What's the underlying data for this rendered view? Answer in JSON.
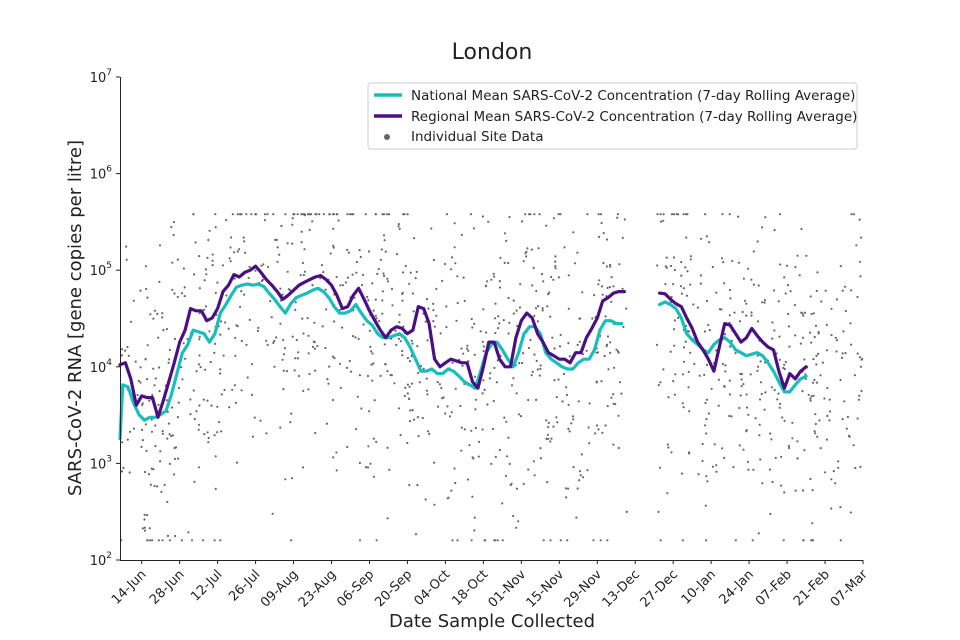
{
  "chart_data": {
    "type": "line",
    "title": "London",
    "xlabel": "Date Sample Collected",
    "ylabel": "SARS-CoV-2 RNA [gene copies per litre]",
    "yscale": "log",
    "ylim": [
      100,
      10000000
    ],
    "xlim": [
      "2021-06-06",
      "2022-03-07"
    ],
    "grid": false,
    "legend_position": "top-right",
    "yticks": [
      {
        "value": 100,
        "base": "10",
        "exp": "2"
      },
      {
        "value": 1000,
        "base": "10",
        "exp": "3"
      },
      {
        "value": 10000,
        "base": "10",
        "exp": "4"
      },
      {
        "value": 100000,
        "base": "10",
        "exp": "5"
      },
      {
        "value": 1000000,
        "base": "10",
        "exp": "6"
      },
      {
        "value": 10000000,
        "base": "10",
        "exp": "7"
      }
    ],
    "xticks": [
      {
        "date": "2021-06-14",
        "label": "14-Jun"
      },
      {
        "date": "2021-06-28",
        "label": "28-Jun"
      },
      {
        "date": "2021-07-12",
        "label": "12-Jul"
      },
      {
        "date": "2021-07-26",
        "label": "26-Jul"
      },
      {
        "date": "2021-08-09",
        "label": "09-Aug"
      },
      {
        "date": "2021-08-23",
        "label": "23-Aug"
      },
      {
        "date": "2021-09-06",
        "label": "06-Sep"
      },
      {
        "date": "2021-09-20",
        "label": "20-Sep"
      },
      {
        "date": "2021-10-04",
        "label": "04-Oct"
      },
      {
        "date": "2021-10-18",
        "label": "18-Oct"
      },
      {
        "date": "2021-11-01",
        "label": "01-Nov"
      },
      {
        "date": "2021-11-15",
        "label": "15-Nov"
      },
      {
        "date": "2021-11-29",
        "label": "29-Nov"
      },
      {
        "date": "2021-12-13",
        "label": "13-Dec"
      },
      {
        "date": "2021-12-27",
        "label": "27-Dec"
      },
      {
        "date": "2022-01-10",
        "label": "10-Jan"
      },
      {
        "date": "2022-01-24",
        "label": "24-Jan"
      },
      {
        "date": "2022-02-07",
        "label": "07-Feb"
      },
      {
        "date": "2022-02-21",
        "label": "21-Feb"
      },
      {
        "date": "2022-03-07",
        "label": "07-Mar"
      }
    ],
    "series": [
      {
        "name": "National Mean SARS-CoV-2 Concentration (7-day Rolling Average)",
        "color": "#17bebb",
        "points": [
          [
            "2021-06-06",
            1800
          ],
          [
            "2021-06-07",
            6500
          ],
          [
            "2021-06-09",
            6200
          ],
          [
            "2021-06-11",
            4200
          ],
          [
            "2021-06-13",
            3200
          ],
          [
            "2021-06-15",
            2800
          ],
          [
            "2021-06-17",
            3000
          ],
          [
            "2021-06-19",
            3000
          ],
          [
            "2021-06-21",
            3200
          ],
          [
            "2021-06-23",
            3500
          ],
          [
            "2021-06-25",
            5200
          ],
          [
            "2021-06-27",
            8500
          ],
          [
            "2021-06-29",
            14000
          ],
          [
            "2021-07-01",
            17000
          ],
          [
            "2021-07-03",
            24000
          ],
          [
            "2021-07-05",
            23000
          ],
          [
            "2021-07-07",
            22000
          ],
          [
            "2021-07-09",
            18000
          ],
          [
            "2021-07-11",
            22000
          ],
          [
            "2021-07-13",
            36000
          ],
          [
            "2021-07-15",
            44000
          ],
          [
            "2021-07-17",
            55000
          ],
          [
            "2021-07-19",
            67000
          ],
          [
            "2021-07-21",
            70000
          ],
          [
            "2021-07-23",
            72000
          ],
          [
            "2021-07-25",
            70000
          ],
          [
            "2021-07-27",
            72000
          ],
          [
            "2021-07-29",
            68000
          ],
          [
            "2021-07-31",
            58000
          ],
          [
            "2021-08-02",
            50000
          ],
          [
            "2021-08-04",
            42000
          ],
          [
            "2021-08-06",
            36000
          ],
          [
            "2021-08-08",
            45000
          ],
          [
            "2021-08-10",
            52000
          ],
          [
            "2021-08-12",
            55000
          ],
          [
            "2021-08-14",
            58000
          ],
          [
            "2021-08-16",
            62000
          ],
          [
            "2021-08-18",
            65000
          ],
          [
            "2021-08-20",
            60000
          ],
          [
            "2021-08-22",
            52000
          ],
          [
            "2021-08-24",
            42000
          ],
          [
            "2021-08-26",
            36000
          ],
          [
            "2021-08-28",
            36000
          ],
          [
            "2021-08-30",
            38000
          ],
          [
            "2021-09-01",
            44000
          ],
          [
            "2021-09-03",
            36000
          ],
          [
            "2021-09-05",
            30000
          ],
          [
            "2021-09-07",
            27000
          ],
          [
            "2021-09-09",
            22000
          ],
          [
            "2021-09-11",
            20000
          ],
          [
            "2021-09-13",
            20000
          ],
          [
            "2021-09-15",
            21000
          ],
          [
            "2021-09-17",
            22000
          ],
          [
            "2021-09-19",
            20000
          ],
          [
            "2021-09-21",
            16000
          ],
          [
            "2021-09-23",
            12000
          ],
          [
            "2021-09-25",
            9000
          ],
          [
            "2021-09-27",
            9000
          ],
          [
            "2021-09-29",
            9500
          ],
          [
            "2021-10-01",
            8500
          ],
          [
            "2021-10-03",
            8500
          ],
          [
            "2021-10-05",
            9500
          ],
          [
            "2021-10-07",
            9000
          ],
          [
            "2021-10-09",
            8000
          ],
          [
            "2021-10-11",
            7000
          ],
          [
            "2021-10-13",
            6500
          ],
          [
            "2021-10-15",
            6000
          ],
          [
            "2021-10-17",
            9000
          ],
          [
            "2021-10-19",
            14000
          ],
          [
            "2021-10-21",
            17000
          ],
          [
            "2021-10-23",
            18000
          ],
          [
            "2021-10-25",
            15000
          ],
          [
            "2021-10-27",
            12000
          ],
          [
            "2021-10-29",
            10000
          ],
          [
            "2021-10-31",
            14000
          ],
          [
            "2021-11-02",
            22000
          ],
          [
            "2021-11-04",
            26000
          ],
          [
            "2021-11-06",
            26000
          ],
          [
            "2021-11-08",
            22000
          ],
          [
            "2021-11-10",
            14000
          ],
          [
            "2021-11-12",
            12000
          ],
          [
            "2021-11-14",
            11000
          ],
          [
            "2021-11-16",
            10000
          ],
          [
            "2021-11-18",
            9500
          ],
          [
            "2021-11-20",
            9500
          ],
          [
            "2021-11-22",
            11000
          ],
          [
            "2021-11-24",
            12000
          ],
          [
            "2021-11-26",
            12000
          ],
          [
            "2021-11-28",
            15000
          ],
          [
            "2021-11-30",
            24000
          ],
          [
            "2021-12-02",
            30000
          ],
          [
            "2021-12-04",
            30000
          ],
          [
            "2021-12-06",
            28000
          ],
          [
            "2021-12-08",
            28000
          ],
          null,
          [
            "2021-12-22",
            44000
          ],
          [
            "2021-12-24",
            47000
          ],
          [
            "2021-12-26",
            44000
          ],
          [
            "2021-12-28",
            40000
          ],
          [
            "2021-12-30",
            32000
          ],
          [
            "2022-01-01",
            22000
          ],
          [
            "2022-01-03",
            19000
          ],
          [
            "2022-01-05",
            17000
          ],
          [
            "2022-01-07",
            15000
          ],
          [
            "2022-01-09",
            14000
          ],
          [
            "2022-01-11",
            17000
          ],
          [
            "2022-01-13",
            19000
          ],
          [
            "2022-01-15",
            20000
          ],
          [
            "2022-01-17",
            18000
          ],
          [
            "2022-01-19",
            15000
          ],
          [
            "2022-01-21",
            14000
          ],
          [
            "2022-01-23",
            13000
          ],
          [
            "2022-01-25",
            13500
          ],
          [
            "2022-01-27",
            14000
          ],
          [
            "2022-01-29",
            13000
          ],
          [
            "2022-01-31",
            11000
          ],
          [
            "2022-02-02",
            9000
          ],
          [
            "2022-02-04",
            7000
          ],
          [
            "2022-02-06",
            5500
          ],
          [
            "2022-02-08",
            5500
          ],
          [
            "2022-02-10",
            6500
          ],
          [
            "2022-02-12",
            7500
          ],
          [
            "2022-02-14",
            8000
          ]
        ]
      },
      {
        "name": "Regional Mean SARS-CoV-2 Concentration (7-day Rolling Average)",
        "color": "#4b0f84",
        "points": [
          [
            "2021-06-06",
            10500
          ],
          [
            "2021-06-08",
            11000
          ],
          [
            "2021-06-10",
            7500
          ],
          [
            "2021-06-12",
            4000
          ],
          [
            "2021-06-14",
            5000
          ],
          [
            "2021-06-16",
            4800
          ],
          [
            "2021-06-18",
            4800
          ],
          [
            "2021-06-20",
            3000
          ],
          [
            "2021-06-22",
            4500
          ],
          [
            "2021-06-24",
            7000
          ],
          [
            "2021-06-26",
            11000
          ],
          [
            "2021-06-28",
            18000
          ],
          [
            "2021-06-30",
            24000
          ],
          [
            "2021-07-02",
            40000
          ],
          [
            "2021-07-04",
            38000
          ],
          [
            "2021-07-06",
            38000
          ],
          [
            "2021-07-08",
            30000
          ],
          [
            "2021-07-10",
            32000
          ],
          [
            "2021-07-12",
            40000
          ],
          [
            "2021-07-14",
            60000
          ],
          [
            "2021-07-16",
            70000
          ],
          [
            "2021-07-18",
            90000
          ],
          [
            "2021-07-20",
            85000
          ],
          [
            "2021-07-22",
            95000
          ],
          [
            "2021-07-24",
            100000
          ],
          [
            "2021-07-26",
            110000
          ],
          [
            "2021-07-28",
            95000
          ],
          [
            "2021-07-30",
            80000
          ],
          [
            "2021-08-01",
            70000
          ],
          [
            "2021-08-03",
            60000
          ],
          [
            "2021-08-05",
            50000
          ],
          [
            "2021-08-07",
            55000
          ],
          [
            "2021-08-09",
            62000
          ],
          [
            "2021-08-11",
            70000
          ],
          [
            "2021-08-13",
            75000
          ],
          [
            "2021-08-15",
            80000
          ],
          [
            "2021-08-17",
            85000
          ],
          [
            "2021-08-19",
            88000
          ],
          [
            "2021-08-21",
            80000
          ],
          [
            "2021-08-23",
            70000
          ],
          [
            "2021-08-25",
            55000
          ],
          [
            "2021-08-27",
            40000
          ],
          [
            "2021-08-29",
            42000
          ],
          [
            "2021-08-31",
            55000
          ],
          [
            "2021-09-02",
            65000
          ],
          [
            "2021-09-04",
            50000
          ],
          [
            "2021-09-06",
            38000
          ],
          [
            "2021-09-08",
            30000
          ],
          [
            "2021-09-10",
            24000
          ],
          [
            "2021-09-12",
            20000
          ],
          [
            "2021-09-14",
            24000
          ],
          [
            "2021-09-16",
            26000
          ],
          [
            "2021-09-18",
            25000
          ],
          [
            "2021-09-20",
            22000
          ],
          [
            "2021-09-22",
            24000
          ],
          [
            "2021-09-24",
            42000
          ],
          [
            "2021-09-26",
            40000
          ],
          [
            "2021-09-28",
            28000
          ],
          [
            "2021-09-30",
            12000
          ],
          [
            "2021-10-02",
            10000
          ],
          [
            "2021-10-04",
            11000
          ],
          [
            "2021-10-06",
            12000
          ],
          [
            "2021-10-08",
            11500
          ],
          [
            "2021-10-10",
            11000
          ],
          [
            "2021-10-12",
            11000
          ],
          [
            "2021-10-14",
            7000
          ],
          [
            "2021-10-16",
            6000
          ],
          [
            "2021-10-18",
            10000
          ],
          [
            "2021-10-20",
            18000
          ],
          [
            "2021-10-22",
            18000
          ],
          [
            "2021-10-24",
            12000
          ],
          [
            "2021-10-26",
            10000
          ],
          [
            "2021-10-28",
            10000
          ],
          [
            "2021-10-30",
            20000
          ],
          [
            "2021-11-01",
            30000
          ],
          [
            "2021-11-03",
            36000
          ],
          [
            "2021-11-05",
            32000
          ],
          [
            "2021-11-07",
            22000
          ],
          [
            "2021-11-09",
            18000
          ],
          [
            "2021-11-11",
            14000
          ],
          [
            "2021-11-13",
            13000
          ],
          [
            "2021-11-15",
            12000
          ],
          [
            "2021-11-17",
            12000
          ],
          [
            "2021-11-19",
            11000
          ],
          [
            "2021-11-21",
            14000
          ],
          [
            "2021-11-23",
            14000
          ],
          [
            "2021-11-25",
            20000
          ],
          [
            "2021-11-27",
            25000
          ],
          [
            "2021-11-29",
            32000
          ],
          [
            "2021-12-01",
            48000
          ],
          [
            "2021-12-03",
            52000
          ],
          [
            "2021-12-05",
            58000
          ],
          [
            "2021-12-07",
            60000
          ],
          [
            "2021-12-09",
            60000
          ],
          null,
          [
            "2021-12-22",
            58000
          ],
          [
            "2021-12-24",
            57000
          ],
          [
            "2021-12-26",
            50000
          ],
          [
            "2021-12-28",
            45000
          ],
          [
            "2021-12-30",
            42000
          ],
          [
            "2022-01-01",
            32000
          ],
          [
            "2022-01-03",
            25000
          ],
          [
            "2022-01-05",
            18000
          ],
          [
            "2022-01-07",
            15000
          ],
          [
            "2022-01-09",
            12000
          ],
          [
            "2022-01-11",
            9000
          ],
          [
            "2022-01-13",
            16000
          ],
          [
            "2022-01-15",
            28000
          ],
          [
            "2022-01-17",
            27000
          ],
          [
            "2022-01-19",
            22000
          ],
          [
            "2022-01-21",
            18000
          ],
          [
            "2022-01-23",
            20000
          ],
          [
            "2022-01-25",
            25000
          ],
          [
            "2022-01-27",
            21000
          ],
          [
            "2022-01-29",
            18000
          ],
          [
            "2022-01-31",
            16000
          ],
          [
            "2022-02-02",
            15000
          ],
          [
            "2022-02-04",
            9000
          ],
          [
            "2022-02-06",
            6000
          ],
          [
            "2022-02-08",
            8500
          ],
          [
            "2022-02-10",
            7500
          ],
          [
            "2022-02-12",
            9000
          ],
          [
            "2022-02-14",
            10000
          ]
        ]
      }
    ],
    "scatter": {
      "name": "Individual Site Data",
      "color": "#666666",
      "approximate_count": 1400,
      "value_range": [
        160,
        380000
      ]
    }
  }
}
